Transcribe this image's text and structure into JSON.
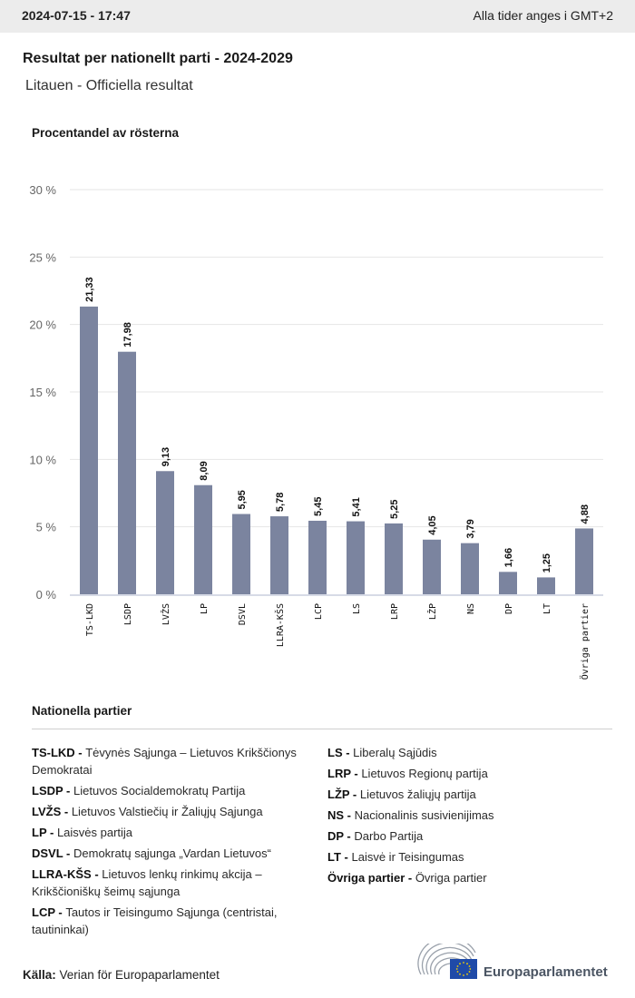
{
  "header": {
    "timestamp": "2024-07-15 - 17:47",
    "timezone_note": "Alla tider anges i GMT+2"
  },
  "title": "Resultat per nationellt parti - 2024-2029",
  "subtitle": "Litauen - Officiella resultat",
  "colors": {
    "bar": "#7b849f",
    "grid": "#e6e6e6",
    "axis": "#d7dbe6",
    "topbar": "#ececec"
  },
  "chart_data": {
    "type": "bar",
    "title": "Resultat per nationellt parti - 2024-2029",
    "ylabel": "Procentandel av rösterna",
    "xlabel": "",
    "ylim": [
      0,
      30
    ],
    "yticks": [
      0,
      5,
      10,
      15,
      20,
      25,
      30
    ],
    "ytick_labels": [
      "0 %",
      "5 %",
      "10 %",
      "15 %",
      "20 %",
      "25 %",
      "30 %"
    ],
    "grid": true,
    "categories": [
      "TS-LKD",
      "LSDP",
      "LVŽS",
      "LP",
      "DSVL",
      "LLRA-KŠS",
      "LCP",
      "LS",
      "LRP",
      "LŽP",
      "NS",
      "DP",
      "LT",
      "Övriga partier"
    ],
    "values": [
      21.33,
      17.98,
      9.13,
      8.09,
      5.95,
      5.78,
      5.45,
      5.41,
      5.25,
      4.05,
      3.79,
      1.66,
      1.25,
      4.88
    ],
    "value_labels": [
      "21,33",
      "17,98",
      "9,13",
      "8,09",
      "5,95",
      "5,78",
      "5,45",
      "5,41",
      "5,25",
      "4,05",
      "3,79",
      "1,66",
      "1,25",
      "4,88"
    ]
  },
  "legend": {
    "title": "Nationella partier",
    "left": [
      {
        "abbr": "TS-LKD",
        "name": "Tėvynės Sąjunga – Lietuvos Krikščionys Demokratai"
      },
      {
        "abbr": "LSDP",
        "name": "Lietuvos Socialdemokratų Partija"
      },
      {
        "abbr": "LVŽS",
        "name": "Lietuvos Valstiečių ir Žaliųjų Sąjunga"
      },
      {
        "abbr": "LP",
        "name": "Laisvės partija"
      },
      {
        "abbr": "DSVL",
        "name": "Demokratų sąjunga „Vardan Lietuvos“"
      },
      {
        "abbr": "LLRA-KŠS",
        "name": "Lietuvos lenkų rinkimų akcija – Krikščioniškų šeimų sąjunga"
      },
      {
        "abbr": "LCP",
        "name": "Tautos ir Teisingumo Sąjunga (centristai, tautininkai)"
      }
    ],
    "right": [
      {
        "abbr": "LS",
        "name": "Liberalų Sąjūdis"
      },
      {
        "abbr": "LRP",
        "name": "Lietuvos Regionų partija"
      },
      {
        "abbr": "LŽP",
        "name": "Lietuvos žaliųjų partija"
      },
      {
        "abbr": "NS",
        "name": "Nacionalinis susivienijimas"
      },
      {
        "abbr": "DP",
        "name": "Darbo Partija"
      },
      {
        "abbr": "LT",
        "name": "Laisvė ir Teisingumas"
      },
      {
        "abbr": "Övriga partier",
        "name": "Övriga partier"
      }
    ],
    "separator": " - "
  },
  "footer": {
    "source_label": "Källa:",
    "source_text": " Verian för Europaparlamentet",
    "logo_text": "Europaparlamentet"
  }
}
